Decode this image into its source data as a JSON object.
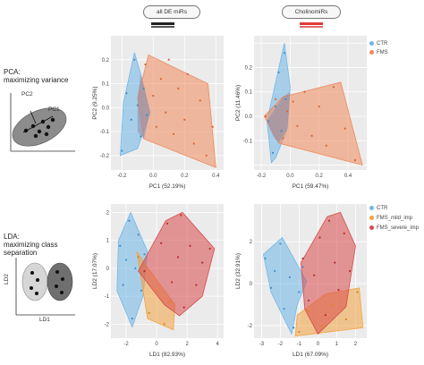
{
  "headers": {
    "left_label": "all DE miRs",
    "right_label": "CholinomiRs"
  },
  "pca_side": {
    "title": "PCA:",
    "subtitle": "maximizing variance",
    "pc1": "PC1",
    "pc2": "PC2"
  },
  "lda_side": {
    "title": "LDA:",
    "subtitle": "maximizing class separation",
    "ld1": "LD1",
    "ld2": "LD2"
  },
  "colors": {
    "CTR": "#6fb7e8",
    "FMS": "#ee8a5c",
    "FMS_mild_imp": "#f3a33f",
    "FMS_severe_imp": "#d94a4a",
    "header_left_bar": "#222222",
    "header_right_bar": "#e23a3a"
  },
  "legend_pca": [
    {
      "label": "CTR",
      "color_key": "CTR"
    },
    {
      "label": "FMS",
      "color_key": "FMS"
    }
  ],
  "legend_lda": [
    {
      "label": "CTR",
      "color_key": "CTR"
    },
    {
      "label": "FMS_mild_imp",
      "color_key": "FMS_mild_imp"
    },
    {
      "label": "FMS_severe_imp",
      "color_key": "FMS_severe_imp"
    }
  ],
  "chart_data": [
    {
      "id": "pca-all",
      "type": "scatter",
      "xlabel": "PC1 (52.19%)",
      "ylabel": "PC2 (9.25%)",
      "xlim": [
        -0.27,
        0.45
      ],
      "ylim": [
        -0.26,
        0.3
      ],
      "xticks": [
        -0.2,
        0.0,
        0.2,
        0.4
      ],
      "xtick_labels": [
        "-0.2",
        "0.0",
        "0.2",
        "0.4"
      ],
      "yticks": [
        -0.2,
        -0.1,
        0.0,
        0.1,
        0.2
      ],
      "yticks_show": [
        "-0.2",
        "-0.1",
        "0.0",
        "0.1",
        "0.2"
      ],
      "hulls": [
        {
          "group": "CTR",
          "points": [
            [
              -0.21,
              -0.2
            ],
            [
              -0.19,
              0.02
            ],
            [
              -0.12,
              0.23
            ],
            [
              -0.08,
              0.14
            ],
            [
              -0.02,
              -0.02
            ],
            [
              -0.1,
              -0.17
            ]
          ]
        },
        {
          "group": "FMS",
          "points": [
            [
              -0.1,
              0.04
            ],
            [
              -0.03,
              0.22
            ],
            [
              0.35,
              0.1
            ],
            [
              0.4,
              -0.25
            ],
            [
              -0.06,
              -0.13
            ]
          ]
        },
        {
          "group": "OVERLAP",
          "points": [
            [
              -0.1,
              0.04
            ],
            [
              -0.08,
              0.14
            ],
            [
              -0.02,
              -0.02
            ],
            [
              -0.06,
              -0.13
            ],
            [
              -0.1,
              -0.1
            ]
          ]
        }
      ],
      "points": [
        {
          "group": "CTR",
          "x": -0.2,
          "y": -0.18
        },
        {
          "group": "CTR",
          "x": -0.17,
          "y": 0.06
        },
        {
          "group": "CTR",
          "x": -0.14,
          "y": -0.05
        },
        {
          "group": "CTR",
          "x": -0.12,
          "y": 0.2
        },
        {
          "group": "CTR",
          "x": -0.1,
          "y": 0.01
        },
        {
          "group": "CTR",
          "x": -0.08,
          "y": -0.12
        },
        {
          "group": "CTR",
          "x": -0.06,
          "y": 0.08
        },
        {
          "group": "CTR",
          "x": -0.04,
          "y": -0.03
        },
        {
          "group": "FMS",
          "x": -0.05,
          "y": 0.18
        },
        {
          "group": "FMS",
          "x": 0.0,
          "y": 0.05
        },
        {
          "group": "FMS",
          "x": 0.02,
          "y": -0.08
        },
        {
          "group": "FMS",
          "x": 0.05,
          "y": 0.12
        },
        {
          "group": "FMS",
          "x": 0.08,
          "y": -0.02
        },
        {
          "group": "FMS",
          "x": 0.1,
          "y": 0.2
        },
        {
          "group": "FMS",
          "x": 0.13,
          "y": -0.11
        },
        {
          "group": "FMS",
          "x": 0.16,
          "y": 0.08
        },
        {
          "group": "FMS",
          "x": 0.2,
          "y": -0.05
        },
        {
          "group": "FMS",
          "x": 0.22,
          "y": 0.14
        },
        {
          "group": "FMS",
          "x": 0.26,
          "y": -0.15
        },
        {
          "group": "FMS",
          "x": 0.3,
          "y": 0.03
        },
        {
          "group": "FMS",
          "x": 0.34,
          "y": -0.2
        },
        {
          "group": "FMS",
          "x": 0.38,
          "y": -0.08
        }
      ]
    },
    {
      "id": "pca-cholino",
      "type": "scatter",
      "xlabel": "PC1 (59.47%)",
      "ylabel": "PC2 (11.46%)",
      "xlim": [
        -0.25,
        0.53
      ],
      "ylim": [
        -0.22,
        0.33
      ],
      "xticks": [
        -0.2,
        0.0,
        0.2,
        0.4
      ],
      "xtick_labels": [
        "-0.2",
        "0.0",
        "0.2",
        "0.4"
      ],
      "yticks": [
        -0.2,
        -0.1,
        0.0,
        0.1,
        0.2,
        0.3
      ],
      "yticks_show": [
        "-0.1",
        "0.0",
        "0.1",
        "0.2"
      ],
      "hulls": [
        {
          "group": "CTR",
          "points": [
            [
              -0.16,
              -0.02
            ],
            [
              -0.04,
              0.3
            ],
            [
              0.0,
              0.12
            ],
            [
              -0.02,
              -0.05
            ],
            [
              -0.1,
              -0.17
            ],
            [
              -0.13,
              -0.19
            ]
          ]
        },
        {
          "group": "FMS",
          "points": [
            [
              -0.18,
              0.0
            ],
            [
              -0.05,
              0.08
            ],
            [
              0.35,
              0.14
            ],
            [
              0.5,
              -0.2
            ],
            [
              -0.08,
              -0.11
            ]
          ]
        },
        {
          "group": "OVERLAP",
          "points": [
            [
              -0.16,
              -0.02
            ],
            [
              -0.05,
              0.08
            ],
            [
              0.0,
              0.1
            ],
            [
              -0.02,
              -0.05
            ],
            [
              -0.08,
              -0.11
            ],
            [
              -0.12,
              -0.08
            ]
          ]
        }
      ],
      "points": [
        {
          "group": "CTR",
          "x": -0.15,
          "y": -0.02
        },
        {
          "group": "CTR",
          "x": -0.12,
          "y": -0.15
        },
        {
          "group": "CTR",
          "x": -0.1,
          "y": 0.04
        },
        {
          "group": "CTR",
          "x": -0.08,
          "y": 0.18
        },
        {
          "group": "CTR",
          "x": -0.06,
          "y": -0.06
        },
        {
          "group": "CTR",
          "x": -0.04,
          "y": 0.26
        },
        {
          "group": "CTR",
          "x": -0.03,
          "y": 0.07
        },
        {
          "group": "FMS",
          "x": -0.17,
          "y": 0.0
        },
        {
          "group": "FMS",
          "x": -0.1,
          "y": 0.07
        },
        {
          "group": "FMS",
          "x": -0.05,
          "y": -0.09
        },
        {
          "group": "FMS",
          "x": -0.02,
          "y": 0.02
        },
        {
          "group": "FMS",
          "x": 0.02,
          "y": 0.06
        },
        {
          "group": "FMS",
          "x": 0.05,
          "y": -0.04
        },
        {
          "group": "FMS",
          "x": 0.1,
          "y": 0.1
        },
        {
          "group": "FMS",
          "x": 0.15,
          "y": -0.08
        },
        {
          "group": "FMS",
          "x": 0.2,
          "y": 0.04
        },
        {
          "group": "FMS",
          "x": 0.25,
          "y": -0.12
        },
        {
          "group": "FMS",
          "x": 0.3,
          "y": 0.12
        },
        {
          "group": "FMS",
          "x": 0.38,
          "y": -0.05
        },
        {
          "group": "FMS",
          "x": 0.45,
          "y": -0.18
        }
      ]
    },
    {
      "id": "lda-all",
      "type": "scatter",
      "xlabel": "LD1 (82.93%)",
      "ylabel": "LD2 (17.07%)",
      "xlim": [
        -3.0,
        4.4
      ],
      "ylim": [
        -2.5,
        2.3
      ],
      "xticks": [
        -2,
        0,
        2,
        4
      ],
      "xtick_labels": [
        "-2",
        "0",
        "2",
        "4"
      ],
      "yticks": [
        -2,
        -1,
        0,
        1,
        2
      ],
      "yticks_show": [
        "-2",
        "-1",
        "0",
        "1",
        "2"
      ],
      "hulls": [
        {
          "group": "CTR",
          "points": [
            [
              -2.5,
              1.0
            ],
            [
              -1.7,
              2.0
            ],
            [
              -0.6,
              0.6
            ],
            [
              -0.9,
              -1.0
            ],
            [
              -1.6,
              -2.1
            ],
            [
              -2.6,
              -0.8
            ]
          ]
        },
        {
          "group": "FMS_mild_imp",
          "points": [
            [
              -1.3,
              0.6
            ],
            [
              -0.7,
              0.1
            ],
            [
              1.2,
              -1.3
            ],
            [
              1.1,
              -2.2
            ],
            [
              -0.6,
              -1.8
            ]
          ]
        },
        {
          "group": "FMS_severe_imp",
          "points": [
            [
              -1.2,
              -0.1
            ],
            [
              0.6,
              1.7
            ],
            [
              1.7,
              2.0
            ],
            [
              3.8,
              0.7
            ],
            [
              3.0,
              -1.0
            ],
            [
              1.5,
              -1.7
            ],
            [
              0.5,
              -1.3
            ]
          ]
        }
      ],
      "points": [
        {
          "group": "CTR",
          "x": -2.4,
          "y": 0.8
        },
        {
          "group": "CTR",
          "x": -2.2,
          "y": -0.6
        },
        {
          "group": "CTR",
          "x": -2.0,
          "y": 0.3
        },
        {
          "group": "CTR",
          "x": -1.8,
          "y": 1.7
        },
        {
          "group": "CTR",
          "x": -1.6,
          "y": -1.8
        },
        {
          "group": "CTR",
          "x": -1.4,
          "y": 0.0
        },
        {
          "group": "CTR",
          "x": -1.2,
          "y": 1.2
        },
        {
          "group": "CTR",
          "x": -1.0,
          "y": -0.8
        },
        {
          "group": "CTR",
          "x": -0.8,
          "y": 0.5
        },
        {
          "group": "FMS_mild_imp",
          "x": -1.2,
          "y": 0.4
        },
        {
          "group": "FMS_mild_imp",
          "x": -0.5,
          "y": -1.6
        },
        {
          "group": "FMS_mild_imp",
          "x": 0.0,
          "y": -0.8
        },
        {
          "group": "FMS_mild_imp",
          "x": 0.5,
          "y": -2.0
        },
        {
          "group": "FMS_mild_imp",
          "x": 0.9,
          "y": -1.2
        },
        {
          "group": "FMS_severe_imp",
          "x": -0.8,
          "y": -0.1
        },
        {
          "group": "FMS_severe_imp",
          "x": 0.3,
          "y": 0.9
        },
        {
          "group": "FMS_severe_imp",
          "x": 0.7,
          "y": 1.6
        },
        {
          "group": "FMS_severe_imp",
          "x": 1.0,
          "y": -0.5
        },
        {
          "group": "FMS_severe_imp",
          "x": 1.4,
          "y": 0.4
        },
        {
          "group": "FMS_severe_imp",
          "x": 1.6,
          "y": 1.9
        },
        {
          "group": "FMS_severe_imp",
          "x": 1.8,
          "y": -1.4
        },
        {
          "group": "FMS_severe_imp",
          "x": 2.2,
          "y": 0.8
        },
        {
          "group": "FMS_severe_imp",
          "x": 2.6,
          "y": -0.6
        },
        {
          "group": "FMS_severe_imp",
          "x": 3.0,
          "y": 0.2
        },
        {
          "group": "FMS_severe_imp",
          "x": 3.5,
          "y": 0.7
        }
      ]
    },
    {
      "id": "lda-cholino",
      "type": "scatter",
      "xlabel": "LD1 (67.09%)",
      "ylabel": "LD2 (32.91%)",
      "xlim": [
        -3.4,
        2.6
      ],
      "ylim": [
        -2.6,
        3.8
      ],
      "xticks": [
        -3,
        -2,
        -1,
        0,
        1,
        2
      ],
      "xtick_labels": [
        "-3",
        "-2",
        "-1",
        "0",
        "1",
        "2"
      ],
      "yticks": [
        -2,
        0,
        2
      ],
      "yticks_show": [
        "-2",
        "0",
        "2"
      ],
      "hulls": [
        {
          "group": "CTR",
          "points": [
            [
              -2.9,
              1.4
            ],
            [
              -1.9,
              2.2
            ],
            [
              -0.6,
              0.1
            ],
            [
              -1.1,
              -1.0
            ],
            [
              -1.4,
              -2.4
            ],
            [
              -2.5,
              -0.4
            ]
          ]
        },
        {
          "group": "FMS_mild_imp",
          "points": [
            [
              -1.1,
              -1.5
            ],
            [
              0.4,
              -0.5
            ],
            [
              2.2,
              -0.2
            ],
            [
              2.4,
              -2.1
            ],
            [
              -1.2,
              -2.5
            ]
          ]
        },
        {
          "group": "FMS_severe_imp",
          "points": [
            [
              -0.9,
              1.0
            ],
            [
              0.5,
              3.2
            ],
            [
              1.2,
              3.4
            ],
            [
              2.0,
              1.8
            ],
            [
              1.5,
              -1.1
            ],
            [
              0.0,
              -2.4
            ],
            [
              -0.7,
              -1.2
            ]
          ]
        }
      ],
      "points": [
        {
          "group": "CTR",
          "x": -2.8,
          "y": 1.2
        },
        {
          "group": "CTR",
          "x": -2.5,
          "y": -0.2
        },
        {
          "group": "CTR",
          "x": -2.3,
          "y": 0.6
        },
        {
          "group": "CTR",
          "x": -2.0,
          "y": 1.9
        },
        {
          "group": "CTR",
          "x": -1.8,
          "y": -1.2
        },
        {
          "group": "CTR",
          "x": -1.5,
          "y": 0.3
        },
        {
          "group": "CTR",
          "x": -1.3,
          "y": -2.1
        },
        {
          "group": "CTR",
          "x": -1.0,
          "y": -0.4
        },
        {
          "group": "CTR",
          "x": -0.8,
          "y": 0.8
        },
        {
          "group": "FMS_mild_imp",
          "x": -1.0,
          "y": -2.3
        },
        {
          "group": "FMS_mild_imp",
          "x": -0.5,
          "y": -1.3
        },
        {
          "group": "FMS_mild_imp",
          "x": 0.2,
          "y": -2.0
        },
        {
          "group": "FMS_mild_imp",
          "x": 0.8,
          "y": -1.0
        },
        {
          "group": "FMS_mild_imp",
          "x": 1.5,
          "y": -1.7
        },
        {
          "group": "FMS_mild_imp",
          "x": 2.1,
          "y": -0.4
        },
        {
          "group": "FMS_severe_imp",
          "x": -0.8,
          "y": 1.2
        },
        {
          "group": "FMS_severe_imp",
          "x": -0.5,
          "y": -0.8
        },
        {
          "group": "FMS_severe_imp",
          "x": -0.2,
          "y": 0.4
        },
        {
          "group": "FMS_severe_imp",
          "x": 0.1,
          "y": 2.2
        },
        {
          "group": "FMS_severe_imp",
          "x": 0.4,
          "y": -1.5
        },
        {
          "group": "FMS_severe_imp",
          "x": 0.6,
          "y": 3.0
        },
        {
          "group": "FMS_severe_imp",
          "x": 0.9,
          "y": 1.0
        },
        {
          "group": "FMS_severe_imp",
          "x": 1.1,
          "y": -0.3
        },
        {
          "group": "FMS_severe_imp",
          "x": 1.4,
          "y": 2.4
        },
        {
          "group": "FMS_severe_imp",
          "x": 1.7,
          "y": 0.6
        }
      ]
    }
  ]
}
